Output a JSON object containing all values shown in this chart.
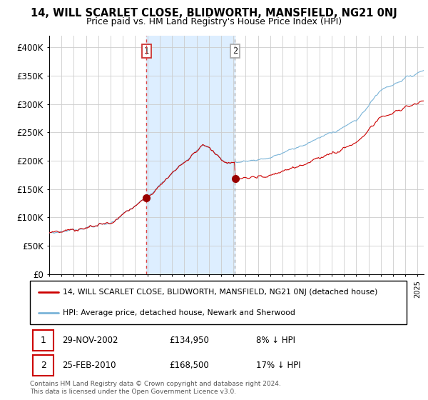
{
  "title": "14, WILL SCARLET CLOSE, BLIDWORTH, MANSFIELD, NG21 0NJ",
  "subtitle": "Price paid vs. HM Land Registry's House Price Index (HPI)",
  "legend_line1": "14, WILL SCARLET CLOSE, BLIDWORTH, MANSFIELD, NG21 0NJ (detached house)",
  "legend_line2": "HPI: Average price, detached house, Newark and Sherwood",
  "sale1_date": "29-NOV-2002",
  "sale1_price": "£134,950",
  "sale1_pct": "8% ↓ HPI",
  "sale2_date": "25-FEB-2010",
  "sale2_price": "£168,500",
  "sale2_pct": "17% ↓ HPI",
  "footer": "Contains HM Land Registry data © Crown copyright and database right 2024.\nThis data is licensed under the Open Government Licence v3.0.",
  "sale1_year": 2002.917,
  "sale1_price_val": 134950,
  "sale2_year": 2010.125,
  "sale2_price_val": 168500,
  "hpi_color": "#7ab4d8",
  "price_color": "#cc0000",
  "marker_color": "#990000",
  "vline1_color": "#dd4444",
  "vline2_color": "#aaaaaa",
  "shade_color": "#ddeeff",
  "grid_color": "#cccccc",
  "bg_color": "#ffffff",
  "ylim": [
    0,
    420000
  ],
  "yticks": [
    0,
    50000,
    100000,
    150000,
    200000,
    250000,
    300000,
    350000,
    400000
  ],
  "ytick_labels": [
    "£0",
    "£50K",
    "£100K",
    "£150K",
    "£200K",
    "£250K",
    "£300K",
    "£350K",
    "£400K"
  ],
  "xstart": 1995.0,
  "xend": 2025.5
}
